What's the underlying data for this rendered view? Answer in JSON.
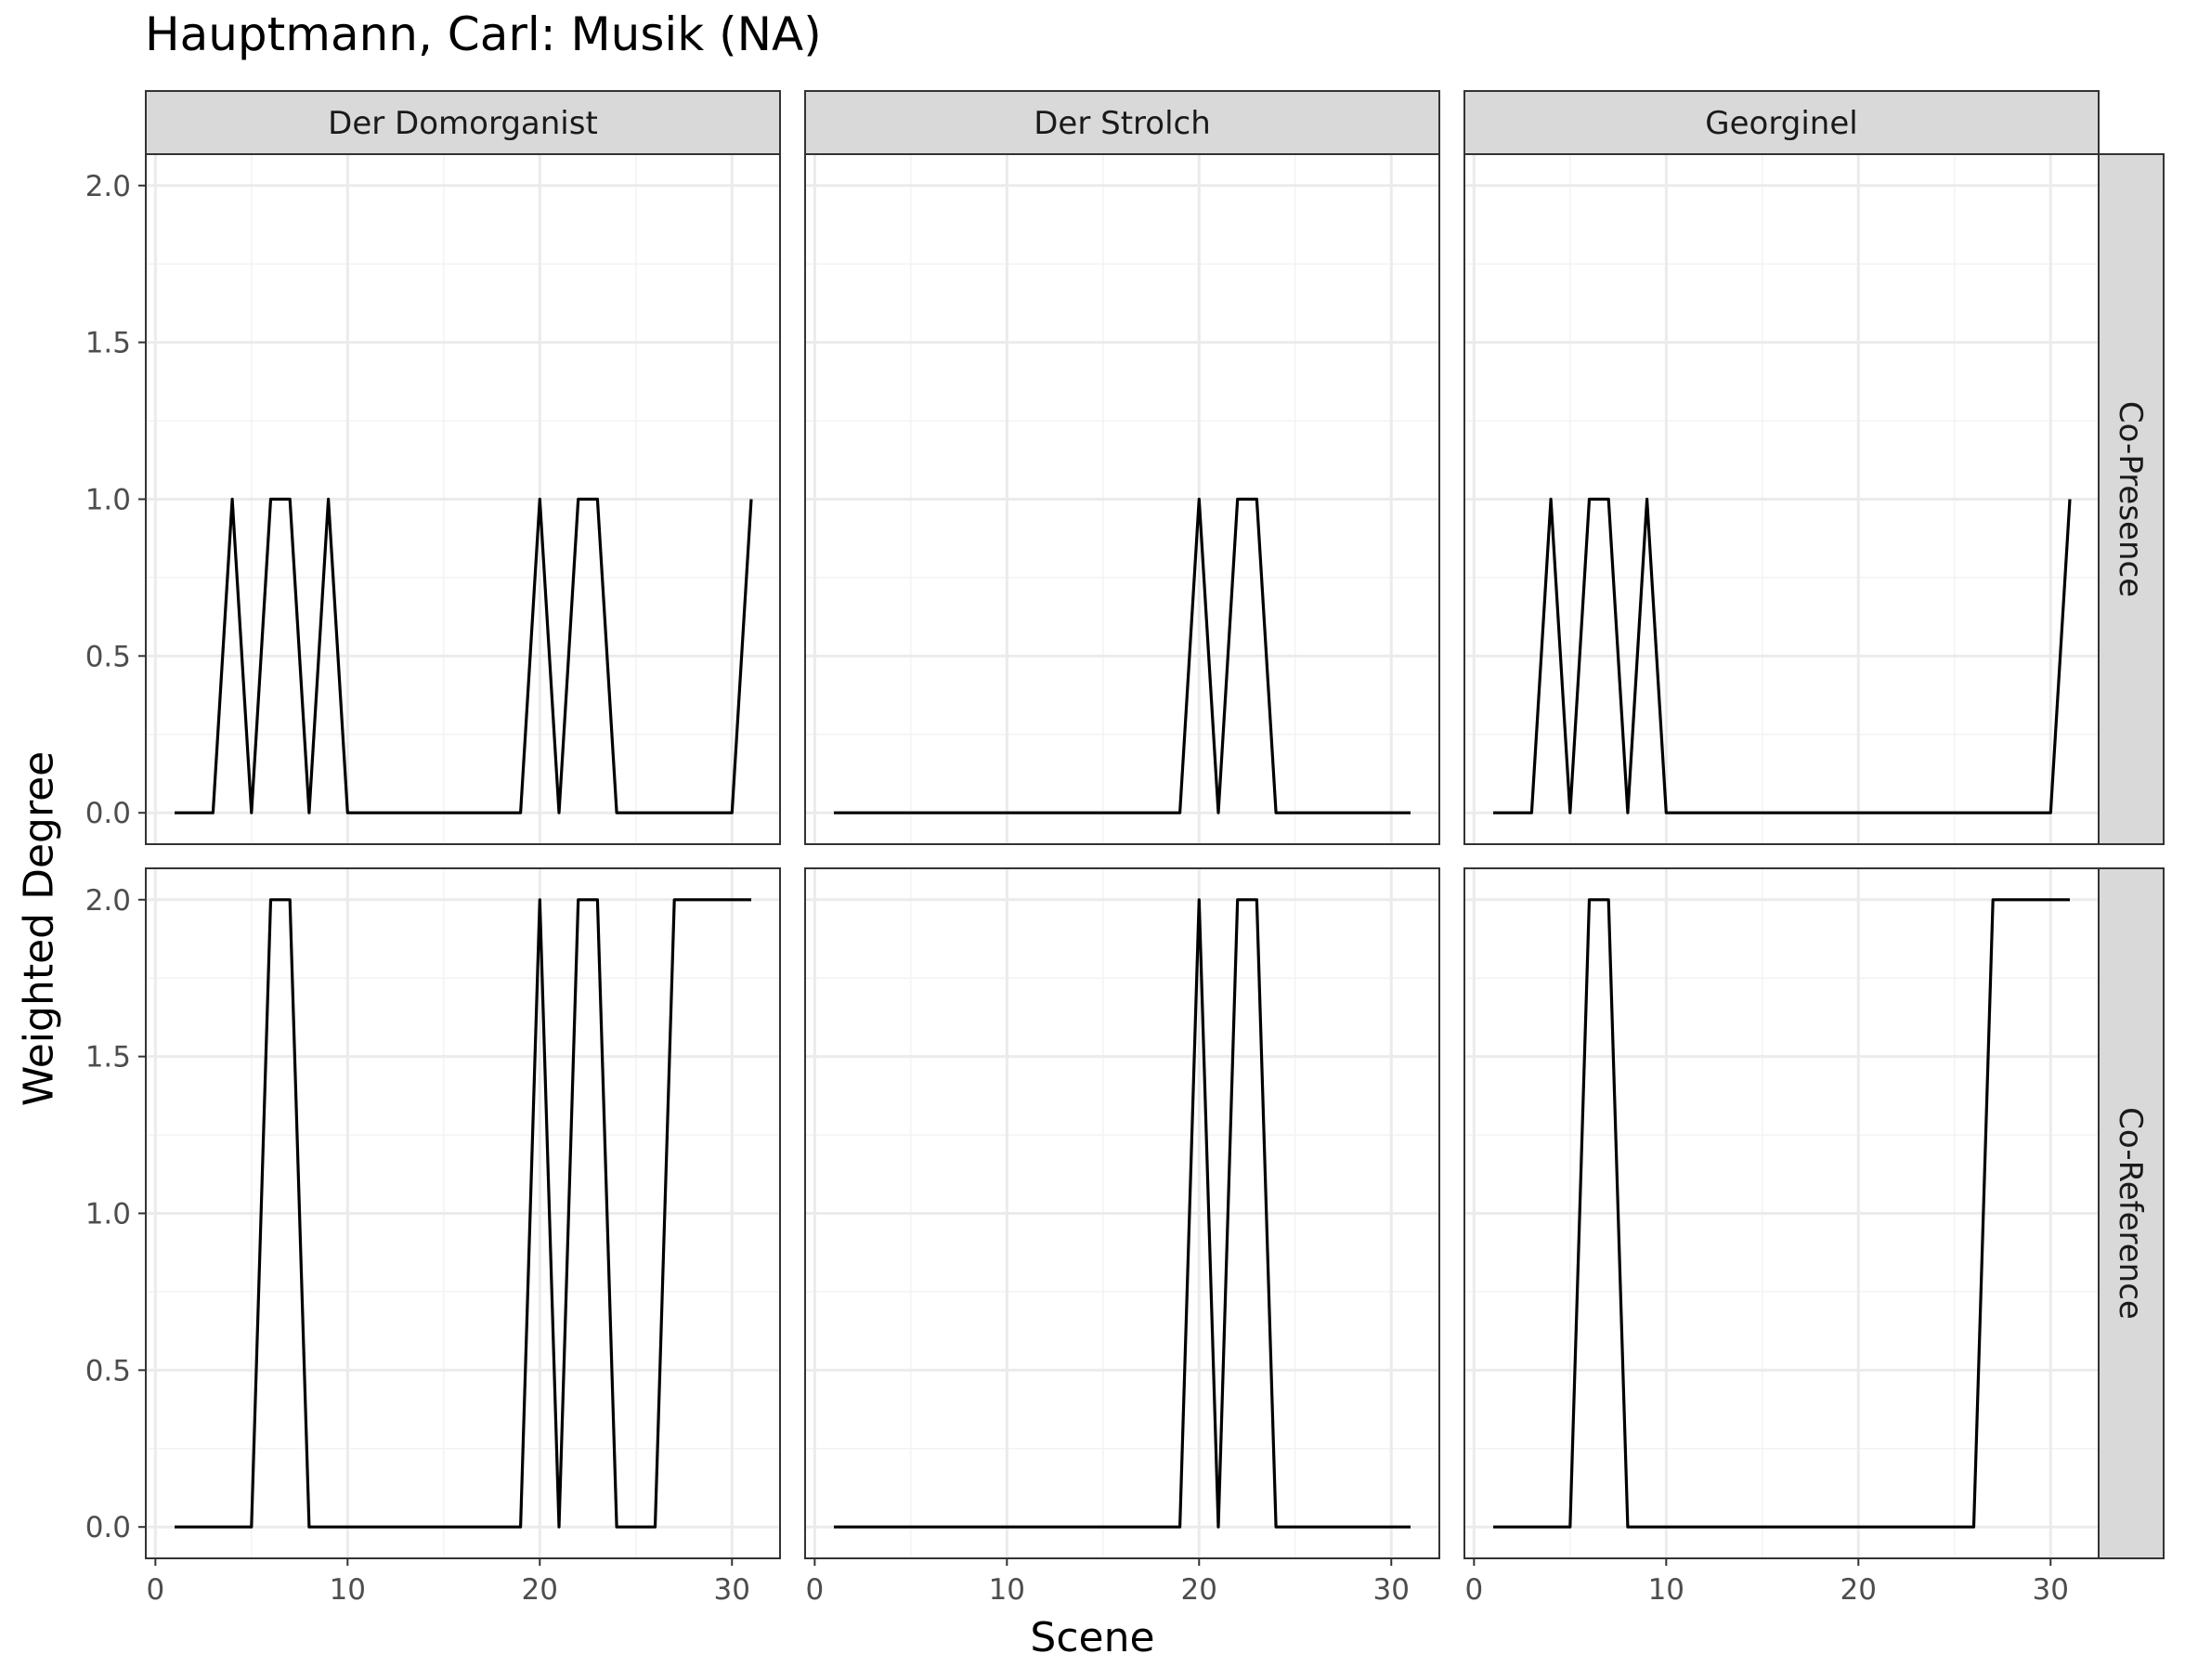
{
  "chart_data": {
    "type": "line",
    "title": "Hauptmann, Carl: Musik (NA)",
    "xlabel": "Scene",
    "ylabel": "Weighted Degree",
    "xlim": [
      0,
      32
    ],
    "ylim": [
      0,
      2
    ],
    "x_ticks": [
      0,
      10,
      20,
      30
    ],
    "y_ticks": [
      0.0,
      0.5,
      1.0,
      1.5,
      2.0
    ],
    "y_tick_labels": [
      "0.0",
      "0.5",
      "1.0",
      "1.5",
      "2.0"
    ],
    "grid": true,
    "columns": [
      "Der Domorganist",
      "Der Strolch",
      "Georginel"
    ],
    "rows": [
      "Co-Presence",
      "Co-Reference"
    ],
    "x": [
      1,
      2,
      3,
      4,
      5,
      6,
      7,
      8,
      9,
      10,
      11,
      12,
      13,
      14,
      15,
      16,
      17,
      18,
      19,
      20,
      21,
      22,
      23,
      24,
      25,
      26,
      27,
      28,
      29,
      30,
      31
    ],
    "panels": [
      {
        "column": "Der Domorganist",
        "row": "Co-Presence",
        "values": [
          0,
          0,
          0,
          1,
          0,
          1,
          1,
          0,
          1,
          0,
          0,
          0,
          0,
          0,
          0,
          0,
          0,
          0,
          0,
          1,
          0,
          1,
          1,
          0,
          0,
          0,
          0,
          0,
          0,
          0,
          1
        ]
      },
      {
        "column": "Der Strolch",
        "row": "Co-Presence",
        "values": [
          0,
          0,
          0,
          0,
          0,
          0,
          0,
          0,
          0,
          0,
          0,
          0,
          0,
          0,
          0,
          0,
          0,
          0,
          0,
          1,
          0,
          1,
          1,
          0,
          0,
          0,
          0,
          0,
          0,
          0,
          0
        ]
      },
      {
        "column": "Georginel",
        "row": "Co-Presence",
        "values": [
          0,
          0,
          0,
          1,
          0,
          1,
          1,
          0,
          1,
          0,
          0,
          0,
          0,
          0,
          0,
          0,
          0,
          0,
          0,
          0,
          0,
          0,
          0,
          0,
          0,
          0,
          0,
          0,
          0,
          0,
          1
        ]
      },
      {
        "column": "Der Domorganist",
        "row": "Co-Reference",
        "values": [
          0,
          0,
          0,
          0,
          0,
          2,
          2,
          0,
          0,
          0,
          0,
          0,
          0,
          0,
          0,
          0,
          0,
          0,
          0,
          2,
          0,
          2,
          2,
          0,
          0,
          0,
          2,
          2,
          2,
          2,
          2
        ]
      },
      {
        "column": "Der Strolch",
        "row": "Co-Reference",
        "values": [
          0,
          0,
          0,
          0,
          0,
          0,
          0,
          0,
          0,
          0,
          0,
          0,
          0,
          0,
          0,
          0,
          0,
          0,
          0,
          2,
          0,
          2,
          2,
          0,
          0,
          0,
          0,
          0,
          0,
          0,
          0
        ]
      },
      {
        "column": "Georginel",
        "row": "Co-Reference",
        "values": [
          0,
          0,
          0,
          0,
          0,
          2,
          2,
          0,
          0,
          0,
          0,
          0,
          0,
          0,
          0,
          0,
          0,
          0,
          0,
          0,
          0,
          0,
          0,
          0,
          0,
          0,
          2,
          2,
          2,
          2,
          2
        ]
      }
    ],
    "colors": {
      "line": "#000000",
      "strip_fill": "#d9d9d9",
      "strip_border": "#333333",
      "panel_border": "#333333",
      "grid_major": "#ebebeb",
      "grid_minor": "#f3f3f3",
      "tick_label": "#4d4d4d"
    }
  }
}
